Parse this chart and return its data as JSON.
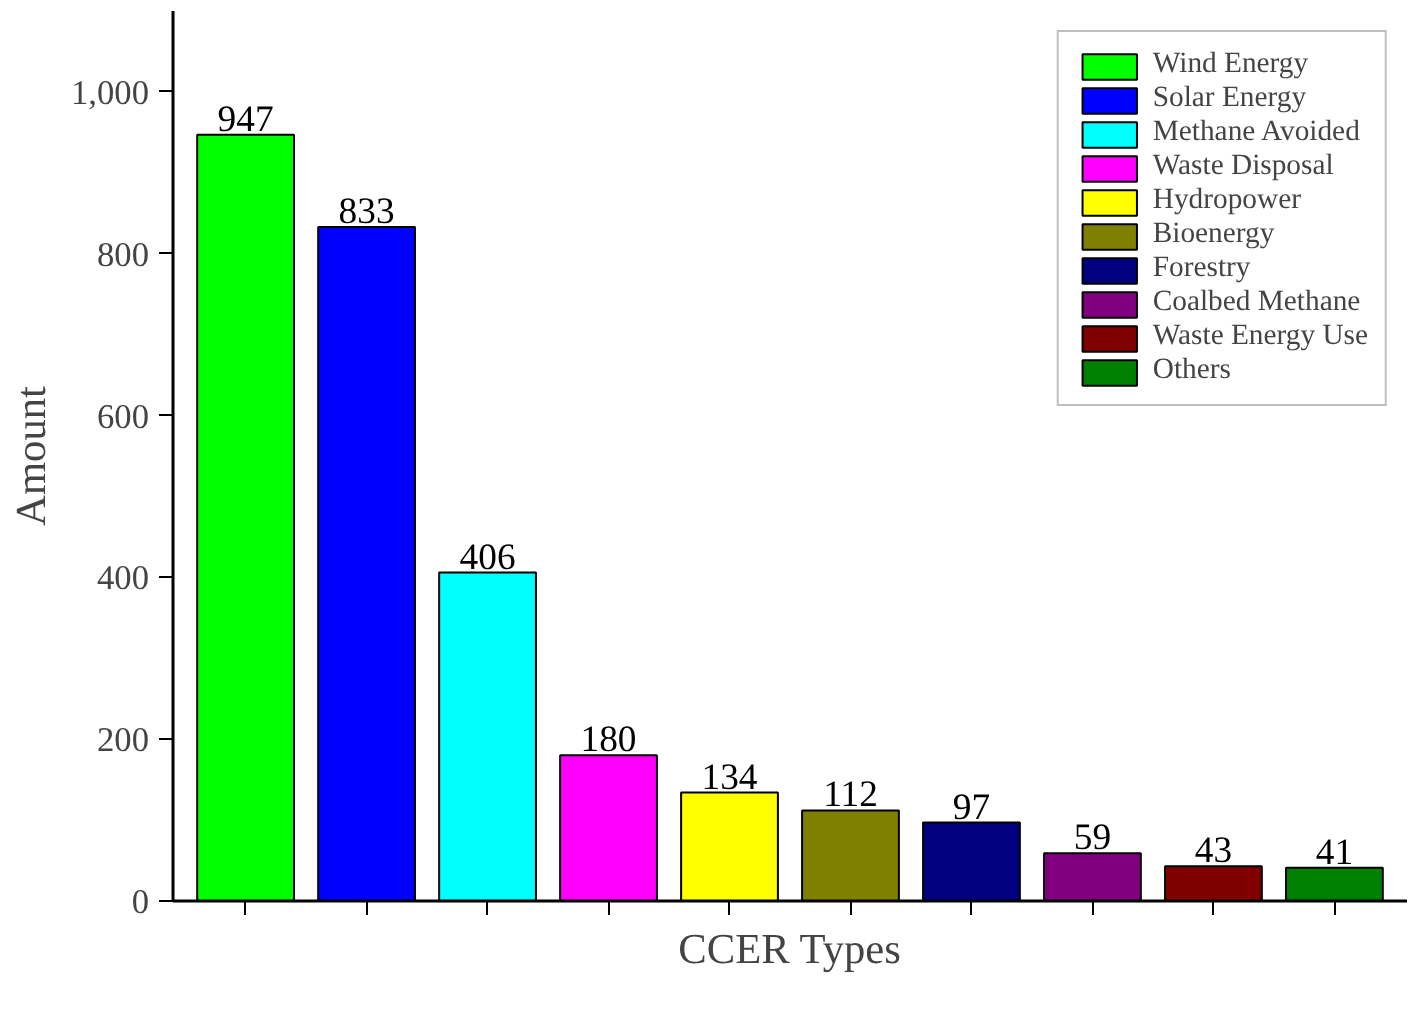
{
  "chart_data": {
    "type": "bar",
    "xlabel": "CCER Types",
    "ylabel": "Amount",
    "categories": [
      null,
      null,
      null,
      null,
      null,
      null,
      null,
      null,
      null,
      null
    ],
    "series": [
      {
        "name": "Wind Energy",
        "color": "#00ff00",
        "values": [
          947,
          null,
          null,
          null,
          null,
          null,
          null,
          null,
          null,
          null
        ]
      },
      {
        "name": "Solar Energy",
        "color": "#0000ff",
        "values": [
          null,
          833,
          null,
          null,
          null,
          null,
          null,
          null,
          null,
          null
        ]
      },
      {
        "name": "Methane Avoided",
        "color": "#00ffff",
        "values": [
          null,
          null,
          406,
          null,
          null,
          null,
          null,
          null,
          null,
          null
        ]
      },
      {
        "name": "Waste Disposal",
        "color": "#ff00ff",
        "values": [
          null,
          null,
          null,
          180,
          null,
          null,
          null,
          null,
          null,
          null
        ]
      },
      {
        "name": "Hydropower",
        "color": "#ffff00",
        "values": [
          null,
          null,
          null,
          null,
          134,
          null,
          null,
          null,
          null,
          null
        ]
      },
      {
        "name": "Bioenergy",
        "color": "#808000",
        "values": [
          null,
          null,
          null,
          null,
          null,
          112,
          null,
          null,
          null,
          null
        ]
      },
      {
        "name": "Forestry",
        "color": "#000080",
        "values": [
          null,
          null,
          null,
          null,
          null,
          null,
          97,
          null,
          null,
          null
        ]
      },
      {
        "name": "Coalbed Methane",
        "color": "#800080",
        "values": [
          null,
          null,
          null,
          null,
          null,
          null,
          null,
          59,
          null,
          null
        ]
      },
      {
        "name": "Waste Energy Use",
        "color": "#800000",
        "values": [
          null,
          null,
          null,
          null,
          null,
          null,
          null,
          null,
          43,
          null
        ]
      },
      {
        "name": "Others",
        "color": "#008000",
        "values": [
          null,
          null,
          null,
          null,
          null,
          null,
          null,
          null,
          null,
          41
        ]
      }
    ],
    "ylim": [
      0,
      1100
    ],
    "yticks": [
      0,
      200,
      400,
      600,
      800,
      {
        "value": 1000,
        "label": "1,000"
      }
    ],
    "tick_labels": "y",
    "grid": false,
    "legend": "top right",
    "data_labels": true
  }
}
